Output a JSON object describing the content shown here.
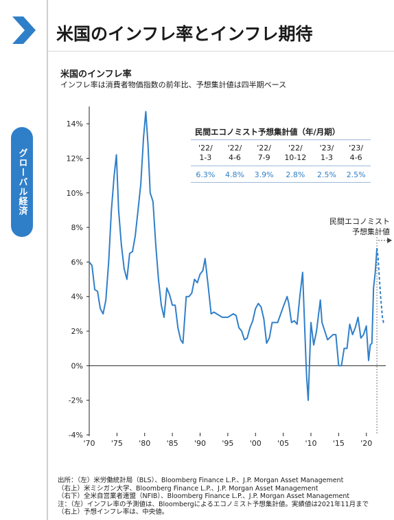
{
  "page": {
    "title": "米国のインフレ率とインフレ期待",
    "side_tab": "グローバル経済"
  },
  "chart": {
    "title": "米国のインフレ率",
    "subtitle": "インフレ率は消費者物価指数の前年比、予想集計値は四半期ベース"
  },
  "forecast_label": [
    "民間エコノミスト",
    "予想集計値"
  ],
  "forecast_table": {
    "header": "民間エコノミスト予想集計値（年/月期）",
    "periods": [
      [
        "'22/",
        "1-3"
      ],
      [
        "'22/",
        "4-6"
      ],
      [
        "'22/",
        "7-9"
      ],
      [
        "'22/",
        "10-12"
      ],
      [
        "'23/",
        "1-3"
      ],
      [
        "'23/",
        "4-6"
      ]
    ],
    "values": [
      "6.3%",
      "4.8%",
      "3.9%",
      "2.8%",
      "2.5%",
      "2.5%"
    ]
  },
  "footnotes": [
    "出所：（左）米労働統計局（BLS）、Bloomberg Finance L.P.、J.P. Morgan Asset Management",
    "（右上）米ミシガン大学、Bloomberg Finance L.P.、J.P. Morgan Asset Management",
    "（右下）全米自営業者連盟（NFIB）、Bloomberg Finance L.P.、J.P. Morgan Asset Management",
    "注：（左）インフレ率の予測値は、Bloombergによるエコノミスト予想集計値。実績値は2021年11月まで",
    "（右上）予想インフレ率は、中央値。"
  ],
  "colors": {
    "line": "#2f7fc8",
    "accent": "#2f7fc8",
    "axis": "#222222"
  },
  "chart_data": {
    "type": "line",
    "ylim": [
      -4,
      15
    ],
    "xlim": [
      1970,
      2023.5
    ],
    "ytick_labels": [
      "14%",
      "12%",
      "10%",
      "8%",
      "6%",
      "4%",
      "2%",
      "0%",
      "-2%",
      "-4%"
    ],
    "yticks": [
      14,
      12,
      10,
      8,
      6,
      4,
      2,
      0,
      -2,
      -4
    ],
    "xtick_labels": [
      "'70",
      "'75",
      "'80",
      "'85",
      "'90",
      "'95",
      "'00",
      "'05",
      "'10",
      "'15",
      "'20"
    ],
    "xticks": [
      1970,
      1975,
      1980,
      1985,
      1990,
      1995,
      2000,
      2005,
      2010,
      2015,
      2020
    ],
    "series": [
      {
        "style": "solid",
        "x": [
          1970,
          1970.5,
          1971,
          1971.5,
          1972,
          1972.5,
          1973,
          1973.5,
          1974,
          1974.5,
          1974.9,
          1975.3,
          1975.8,
          1976.3,
          1976.8,
          1977.3,
          1977.8,
          1978.3,
          1978.8,
          1979.3,
          1979.8,
          1980.2,
          1980.6,
          1981,
          1981.5,
          1982,
          1982.5,
          1983,
          1983.5,
          1984,
          1984.5,
          1985,
          1985.5,
          1986,
          1986.5,
          1986.9,
          1987.5,
          1988,
          1988.5,
          1989,
          1989.5,
          1990,
          1990.5,
          1990.9,
          1991.5,
          1992,
          1992.5,
          1993,
          1994,
          1995,
          1996,
          1996.5,
          1997,
          1997.5,
          1998,
          1998.5,
          1999,
          1999.5,
          2000,
          2000.5,
          2001,
          2001.5,
          2002,
          2002.5,
          2003,
          2004,
          2005,
          2005.7,
          2006,
          2006.5,
          2007,
          2007.5,
          2008,
          2008.5,
          2008.9,
          2009.2,
          2009.5,
          2010,
          2010.5,
          2011,
          2011.7,
          2012,
          2013,
          2014,
          2014.5,
          2015,
          2015.5,
          2016,
          2016.5,
          2017,
          2017.5,
          2018,
          2018.5,
          2019,
          2019.5,
          2020,
          2020.4,
          2020.7,
          2021,
          2021.3,
          2021.6,
          2021.9
        ],
        "values": [
          6.0,
          5.8,
          4.4,
          4.3,
          3.3,
          3.0,
          3.8,
          6.0,
          9.0,
          11.0,
          12.2,
          9.0,
          7.0,
          5.6,
          5.0,
          6.5,
          6.6,
          7.5,
          9.0,
          10.5,
          13.2,
          14.7,
          12.8,
          10.0,
          9.5,
          7.0,
          5.0,
          3.5,
          2.8,
          4.5,
          4.1,
          3.5,
          3.5,
          2.2,
          1.5,
          1.3,
          4.0,
          4.0,
          4.2,
          5.0,
          4.8,
          5.3,
          5.5,
          6.2,
          4.5,
          3.0,
          3.1,
          3.0,
          2.8,
          2.8,
          3.0,
          2.9,
          2.2,
          2.0,
          1.5,
          1.6,
          2.2,
          2.6,
          3.3,
          3.6,
          3.4,
          2.7,
          1.3,
          1.6,
          2.5,
          2.5,
          3.4,
          4.0,
          3.6,
          2.5,
          2.6,
          2.4,
          4.0,
          5.4,
          2.0,
          -0.5,
          -2.0,
          2.5,
          1.2,
          2.0,
          3.8,
          2.5,
          1.5,
          1.8,
          1.8,
          0.0,
          0.0,
          1.0,
          1.0,
          2.4,
          1.8,
          2.2,
          2.8,
          1.6,
          1.8,
          2.3,
          0.3,
          1.2,
          1.3,
          4.5,
          5.4,
          6.8
        ]
      },
      {
        "style": "dashed",
        "x": [
          2021.9,
          2022.1,
          2022.4,
          2022.6,
          2022.9,
          2023.1,
          2023.4
        ],
        "values": [
          6.8,
          6.3,
          4.8,
          3.9,
          2.8,
          2.5,
          2.5
        ]
      }
    ],
    "forecast_start": 2021.9
  }
}
